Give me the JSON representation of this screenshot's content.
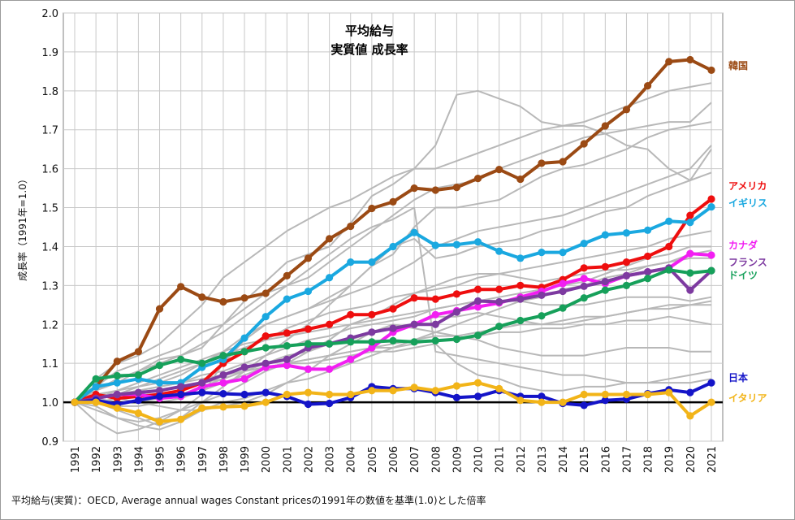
{
  "chart_data": {
    "type": "line",
    "title_line1": "平均給与",
    "title_line2": "実質値 成長率",
    "ylabel": "成長率（1991年=1.0）",
    "caption": "平均給与(実質)：OECD, Average annual wages Constant pricesの1991年の数値を基準(1.0)とした倍率",
    "ylim": [
      0.9,
      2.0
    ],
    "yticks": [
      "0.9",
      "1.0",
      "1.1",
      "1.2",
      "1.3",
      "1.4",
      "1.5",
      "1.6",
      "1.7",
      "1.8",
      "1.9",
      "2.0"
    ],
    "x": [
      "1991",
      "1992",
      "1993",
      "1994",
      "1995",
      "1996",
      "1997",
      "1998",
      "1999",
      "2000",
      "2001",
      "2002",
      "2003",
      "2004",
      "2005",
      "2006",
      "2007",
      "2008",
      "2009",
      "2010",
      "2011",
      "2012",
      "2013",
      "2014",
      "2015",
      "2016",
      "2017",
      "2018",
      "2019",
      "2020",
      "2021"
    ],
    "baseline": 1.0,
    "grid": true,
    "legend": "right-of-series-ends",
    "series": [
      {
        "name": "韓国",
        "color": "#9b4a14",
        "values": [
          1.0,
          1.04,
          1.105,
          1.13,
          1.24,
          1.297,
          1.27,
          1.258,
          1.268,
          1.28,
          1.325,
          1.37,
          1.42,
          1.452,
          1.498,
          1.515,
          1.55,
          1.545,
          1.552,
          1.575,
          1.598,
          1.573,
          1.614,
          1.618,
          1.664,
          1.71,
          1.752,
          1.813,
          1.875,
          1.88,
          1.853
        ]
      },
      {
        "name": "アメリカ",
        "color": "#ee0e0e",
        "values": [
          1.0,
          1.02,
          1.01,
          1.015,
          1.02,
          1.03,
          1.05,
          1.1,
          1.13,
          1.17,
          1.178,
          1.188,
          1.2,
          1.225,
          1.225,
          1.24,
          1.268,
          1.265,
          1.278,
          1.29,
          1.29,
          1.3,
          1.295,
          1.315,
          1.345,
          1.348,
          1.36,
          1.375,
          1.4,
          1.48,
          1.522
        ]
      },
      {
        "name": "イギリス",
        "color": "#1aa8e0",
        "values": [
          1.0,
          1.04,
          1.05,
          1.06,
          1.05,
          1.05,
          1.09,
          1.11,
          1.165,
          1.22,
          1.265,
          1.285,
          1.32,
          1.36,
          1.36,
          1.4,
          1.436,
          1.403,
          1.405,
          1.412,
          1.388,
          1.37,
          1.385,
          1.385,
          1.408,
          1.43,
          1.435,
          1.442,
          1.465,
          1.462,
          1.502
        ]
      },
      {
        "name": "カナダ",
        "color": "#f21ef2",
        "values": [
          1.0,
          1.01,
          1.02,
          1.02,
          1.01,
          1.015,
          1.04,
          1.05,
          1.06,
          1.09,
          1.095,
          1.085,
          1.085,
          1.11,
          1.14,
          1.18,
          1.2,
          1.225,
          1.235,
          1.245,
          1.255,
          1.27,
          1.285,
          1.305,
          1.318,
          1.305,
          1.325,
          1.335,
          1.345,
          1.382,
          1.378
        ]
      },
      {
        "name": "フランス",
        "color": "#7d3aa0",
        "values": [
          1.0,
          1.01,
          1.02,
          1.025,
          1.03,
          1.04,
          1.05,
          1.07,
          1.09,
          1.1,
          1.11,
          1.14,
          1.15,
          1.165,
          1.18,
          1.19,
          1.2,
          1.2,
          1.232,
          1.26,
          1.258,
          1.265,
          1.275,
          1.285,
          1.298,
          1.31,
          1.325,
          1.335,
          1.345,
          1.288,
          1.338
        ]
      },
      {
        "name": "ドイツ",
        "color": "#16a05a",
        "values": [
          1.0,
          1.06,
          1.068,
          1.07,
          1.095,
          1.11,
          1.1,
          1.12,
          1.13,
          1.14,
          1.145,
          1.15,
          1.15,
          1.155,
          1.155,
          1.158,
          1.155,
          1.158,
          1.162,
          1.172,
          1.195,
          1.21,
          1.222,
          1.242,
          1.268,
          1.288,
          1.3,
          1.318,
          1.34,
          1.332,
          1.338
        ]
      },
      {
        "name": "日本",
        "color": "#1414c8",
        "values": [
          1.0,
          1.005,
          0.995,
          1.005,
          1.015,
          1.02,
          1.025,
          1.022,
          1.02,
          1.025,
          1.015,
          0.995,
          0.997,
          1.012,
          1.04,
          1.035,
          1.035,
          1.025,
          1.012,
          1.015,
          1.03,
          1.015,
          1.015,
          0.997,
          0.992,
          1.005,
          1.008,
          1.022,
          1.032,
          1.025,
          1.05
        ]
      },
      {
        "name": "イタリア",
        "color": "#f2b418",
        "values": [
          1.0,
          1.0,
          0.985,
          0.972,
          0.95,
          0.956,
          0.985,
          0.988,
          0.99,
          1.0,
          1.02,
          1.025,
          1.02,
          1.02,
          1.03,
          1.03,
          1.038,
          1.03,
          1.042,
          1.05,
          1.035,
          1.005,
          1.0,
          1.0,
          1.02,
          1.02,
          1.02,
          1.02,
          1.025,
          0.965,
          1.0
        ]
      }
    ],
    "other_countries_color": "#b8b8b8",
    "other_countries": [
      [
        1.0,
        1.03,
        1.05,
        1.08,
        1.11,
        1.12,
        1.14,
        1.2,
        1.26,
        1.31,
        1.36,
        1.38,
        1.4,
        1.46,
        1.53,
        1.56,
        1.6,
        1.66,
        1.79,
        1.8,
        1.78,
        1.76,
        1.72,
        1.71,
        1.71,
        1.69,
        1.66,
        1.65,
        1.6,
        1.57,
        1.65
      ],
      [
        1.0,
        1.06,
        1.1,
        1.12,
        1.15,
        1.2,
        1.25,
        1.32,
        1.36,
        1.4,
        1.44,
        1.47,
        1.5,
        1.52,
        1.55,
        1.58,
        1.6,
        1.6,
        1.62,
        1.64,
        1.66,
        1.68,
        1.7,
        1.71,
        1.72,
        1.74,
        1.76,
        1.78,
        1.8,
        1.81,
        1.82
      ],
      [
        1.0,
        1.04,
        1.08,
        1.1,
        1.12,
        1.14,
        1.18,
        1.2,
        1.24,
        1.28,
        1.3,
        1.32,
        1.36,
        1.4,
        1.44,
        1.48,
        1.52,
        1.55,
        1.56,
        1.57,
        1.6,
        1.62,
        1.64,
        1.66,
        1.68,
        1.69,
        1.7,
        1.71,
        1.72,
        1.72,
        1.77
      ],
      [
        1.0,
        1.02,
        1.02,
        1.04,
        1.06,
        1.08,
        1.1,
        1.13,
        1.17,
        1.2,
        1.22,
        1.24,
        1.27,
        1.3,
        1.35,
        1.38,
        1.45,
        1.5,
        1.5,
        1.51,
        1.52,
        1.55,
        1.58,
        1.6,
        1.61,
        1.63,
        1.65,
        1.68,
        1.7,
        1.71,
        1.72
      ],
      [
        1.0,
        0.95,
        0.92,
        0.93,
        0.95,
        0.98,
        1.02,
        1.1,
        1.16,
        1.2,
        1.22,
        1.24,
        1.26,
        1.28,
        1.3,
        1.33,
        1.36,
        1.4,
        1.42,
        1.44,
        1.45,
        1.46,
        1.47,
        1.48,
        1.5,
        1.52,
        1.54,
        1.56,
        1.58,
        1.6,
        1.66
      ],
      [
        1.0,
        1.0,
        0.98,
        0.96,
        0.94,
        0.96,
        1.0,
        1.04,
        1.08,
        1.12,
        1.16,
        1.2,
        1.25,
        1.3,
        1.35,
        1.4,
        1.42,
        1.37,
        1.38,
        1.4,
        1.41,
        1.42,
        1.44,
        1.45,
        1.47,
        1.49,
        1.5,
        1.53,
        1.55,
        1.57,
        1.59
      ],
      [
        1.0,
        1.02,
        1.03,
        1.04,
        1.05,
        1.07,
        1.1,
        1.12,
        1.14,
        1.16,
        1.19,
        1.21,
        1.23,
        1.24,
        1.25,
        1.27,
        1.28,
        1.29,
        1.3,
        1.32,
        1.33,
        1.34,
        1.35,
        1.36,
        1.37,
        1.38,
        1.39,
        1.4,
        1.42,
        1.43,
        1.44
      ],
      [
        1.0,
        1.01,
        1.02,
        1.03,
        1.04,
        1.05,
        1.07,
        1.08,
        1.1,
        1.12,
        1.14,
        1.16,
        1.17,
        1.19,
        1.2,
        1.21,
        1.22,
        1.24,
        1.25,
        1.26,
        1.27,
        1.28,
        1.29,
        1.3,
        1.31,
        1.33,
        1.35,
        1.37,
        1.38,
        1.4,
        1.4
      ],
      [
        1.0,
        0.98,
        0.96,
        0.95,
        0.96,
        0.98,
        1.0,
        1.02,
        1.05,
        1.08,
        1.1,
        1.13,
        1.16,
        1.2,
        1.22,
        1.25,
        1.28,
        1.3,
        1.32,
        1.33,
        1.33,
        1.32,
        1.31,
        1.32,
        1.33,
        1.34,
        1.34,
        1.35,
        1.36,
        1.37,
        1.37
      ],
      [
        1.0,
        1.01,
        1.0,
        1.0,
        1.01,
        1.02,
        1.04,
        1.06,
        1.08,
        1.1,
        1.12,
        1.13,
        1.15,
        1.16,
        1.18,
        1.19,
        1.2,
        1.22,
        1.22,
        1.23,
        1.22,
        1.21,
        1.2,
        1.2,
        1.21,
        1.22,
        1.23,
        1.24,
        1.25,
        1.25,
        1.26
      ],
      [
        1.0,
        1.0,
        0.99,
        0.99,
        1.0,
        1.01,
        1.03,
        1.05,
        1.07,
        1.09,
        1.1,
        1.11,
        1.12,
        1.13,
        1.14,
        1.15,
        1.16,
        1.17,
        1.17,
        1.18,
        1.19,
        1.2,
        1.2,
        1.21,
        1.22,
        1.22,
        1.23,
        1.24,
        1.24,
        1.25,
        1.25
      ],
      [
        1.0,
        1.01,
        1.02,
        1.02,
        1.03,
        1.04,
        1.05,
        1.06,
        1.08,
        1.09,
        1.1,
        1.11,
        1.12,
        1.13,
        1.14,
        1.14,
        1.15,
        1.16,
        1.16,
        1.17,
        1.18,
        1.18,
        1.19,
        1.19,
        1.2,
        1.2,
        1.21,
        1.21,
        1.22,
        1.21,
        1.2
      ],
      [
        1.0,
        1.0,
        1.01,
        1.0,
        0.99,
        0.98,
        0.98,
        0.99,
        1.0,
        1.02,
        1.05,
        1.08,
        1.12,
        1.15,
        1.18,
        1.2,
        1.19,
        1.18,
        1.17,
        1.16,
        1.14,
        1.13,
        1.12,
        1.12,
        1.12,
        1.13,
        1.14,
        1.14,
        1.14,
        1.13,
        1.13
      ],
      [
        1.0,
        1.03,
        1.06,
        1.08,
        1.1,
        1.12,
        1.15,
        1.18,
        1.22,
        1.26,
        1.3,
        1.34,
        1.38,
        1.42,
        1.45,
        1.47,
        1.5,
        1.13,
        1.12,
        1.11,
        1.1,
        1.09,
        1.08,
        1.07,
        1.07,
        1.06,
        1.05,
        1.05,
        1.05,
        1.05,
        1.06
      ],
      [
        1.0,
        1.01,
        1.02,
        1.03,
        1.04,
        1.05,
        1.06,
        1.07,
        1.08,
        1.09,
        1.1,
        1.1,
        1.11,
        1.12,
        1.13,
        1.13,
        1.14,
        1.15,
        1.1,
        1.07,
        1.06,
        1.04,
        1.03,
        1.03,
        1.04,
        1.04,
        1.05,
        1.05,
        1.06,
        1.07,
        1.08
      ],
      [
        1.0,
        0.99,
        0.96,
        0.94,
        0.93,
        0.95,
        0.98,
        1.0,
        1.01,
        1.03,
        1.05,
        1.06,
        1.08,
        1.1,
        1.12,
        1.14,
        1.16,
        1.18,
        1.2,
        1.22,
        1.24,
        1.26,
        1.27,
        1.29,
        1.3,
        1.32,
        1.33,
        1.35,
        1.36,
        1.38,
        1.39
      ],
      [
        1.0,
        1.01,
        1.03,
        1.05,
        1.07,
        1.09,
        1.11,
        1.13,
        1.15,
        1.16,
        1.17,
        1.18,
        1.19,
        1.2,
        1.21,
        1.22,
        1.23,
        1.24,
        1.25,
        1.26,
        1.26,
        1.26,
        1.25,
        1.25,
        1.25,
        1.26,
        1.27,
        1.27,
        1.27,
        1.26,
        1.27
      ]
    ]
  }
}
